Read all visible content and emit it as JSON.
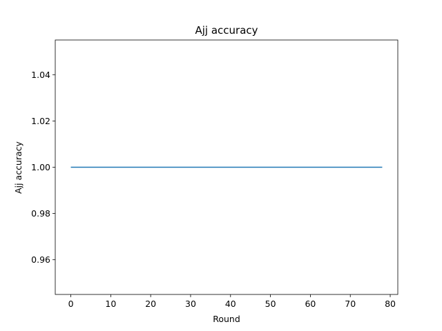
{
  "chart_data": {
    "type": "line",
    "title": "Ajj accuracy",
    "xlabel": "Round",
    "ylabel": "Ajj accuracy",
    "xlim": [
      -3.9,
      81.9
    ],
    "ylim": [
      0.945,
      1.055
    ],
    "x_ticks": [
      0,
      10,
      20,
      30,
      40,
      50,
      60,
      70,
      80
    ],
    "y_ticks": [
      0.96,
      0.98,
      1.0,
      1.02,
      1.04
    ],
    "y_tick_labels": [
      "0.96",
      "0.98",
      "1.00",
      "1.02",
      "1.04"
    ],
    "grid": false,
    "series": [
      {
        "color": "#1f77b4",
        "x_start": 0,
        "x_end": 78,
        "y": 1.0
      }
    ]
  }
}
